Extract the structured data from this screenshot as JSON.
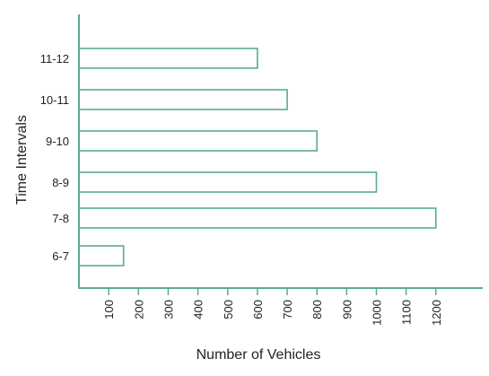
{
  "chart_data": {
    "type": "bar",
    "orientation": "horizontal",
    "categories": [
      "6-7",
      "7-8",
      "8-9",
      "9-10",
      "10-11",
      "11-12"
    ],
    "values": [
      150,
      1200,
      1000,
      800,
      700,
      600
    ],
    "xlabel": "Number of Vehicles",
    "ylabel": "Time Intervals",
    "xlim": [
      0,
      1200
    ],
    "xticks": [
      100,
      200,
      300,
      400,
      500,
      600,
      700,
      800,
      900,
      1000,
      1100,
      1200
    ],
    "grid": false,
    "colors": {
      "bar_stroke": "#5aab95",
      "bar_fill": "#ffffff",
      "axis": "#5aab95"
    }
  }
}
